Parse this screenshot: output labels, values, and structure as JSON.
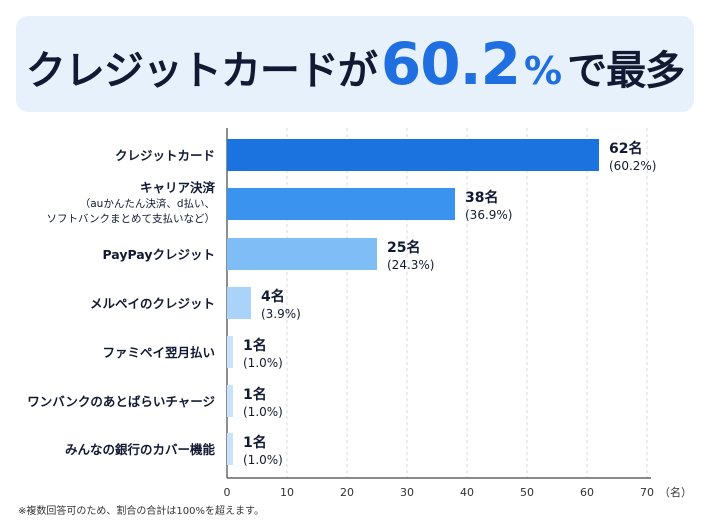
{
  "headline": {
    "part1": "クレジットカードが",
    "number": "60.2",
    "percent": "%",
    "part2": "で最多"
  },
  "footnote": "※複数回答可のため、割合の合計は100%を超えます。",
  "colors": {
    "banner_bg": "#e6f1fb",
    "headline_accent": "#1f6fe0",
    "bar_shades": [
      "#1b73e0",
      "#3b93f0",
      "#7fbdf6",
      "#a9d3f9",
      "#c9e3fb",
      "#c9e3fb",
      "#c9e3fb"
    ]
  },
  "chart_data": {
    "type": "bar",
    "orientation": "horizontal",
    "title": "",
    "xlabel": "",
    "ylabel": "",
    "x_unit_label": "（名）",
    "xlim": [
      0,
      70
    ],
    "x_ticks": [
      0,
      10,
      20,
      30,
      40,
      50,
      60,
      70
    ],
    "grid": "vertical-dashed",
    "categories": [
      {
        "lines": [
          "クレジットカード"
        ]
      },
      {
        "lines": [
          "キャリア決済",
          "（auかんたん決済、d払い、",
          "ソフトバンクまとめて支払いなど）"
        ]
      },
      {
        "lines": [
          "PayPayクレジット"
        ]
      },
      {
        "lines": [
          "メルペイのクレジット"
        ]
      },
      {
        "lines": [
          "ファミペイ翌月払い"
        ]
      },
      {
        "lines": [
          "ワンバンクのあとばらいチャージ"
        ]
      },
      {
        "lines": [
          "みんなの銀行のカバー機能"
        ]
      }
    ],
    "values": [
      62,
      38,
      25,
      4,
      1,
      1,
      1
    ],
    "value_labels": [
      "62名",
      "38名",
      "25名",
      "4名",
      "1名",
      "1名",
      "1名"
    ],
    "percent_labels": [
      "(60.2%)",
      "(36.9%)",
      "(24.3%)",
      "(3.9%)",
      "(1.0%)",
      "(1.0%)",
      "(1.0%)"
    ]
  }
}
